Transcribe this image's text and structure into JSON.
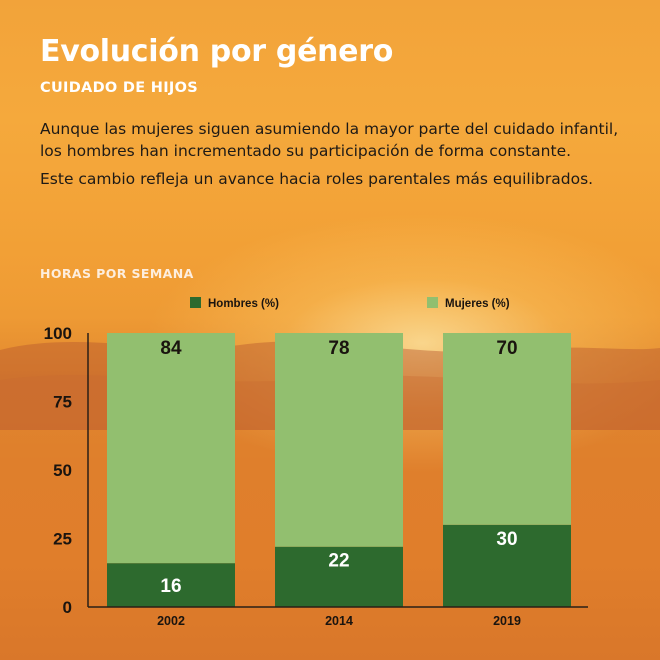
{
  "header": {
    "title": "Evolución por género",
    "subtitle": "CUIDADO DE HIJOS"
  },
  "intro": {
    "paragraph_1": "Aunque las mujeres siguen asumiendo la mayor parte del cuidado infantil, los hombres han incrementado su participación de forma constante.",
    "paragraph_2": "Este cambio refleja un avance hacia roles parentales más equilibrados."
  },
  "chart_label": "HORAS POR SEMANA",
  "colors": {
    "hombres": "#2d6a2e",
    "mujeres": "#92bf6f",
    "axis": "#2a1f16",
    "text_dark": "#1a140f",
    "text_light": "#ffffff"
  },
  "chart_data": {
    "type": "bar",
    "stacked": true,
    "title": "",
    "xlabel": "",
    "ylabel": "",
    "categories": [
      "2002",
      "2014",
      "2019"
    ],
    "series": [
      {
        "name": "Hombres (%)",
        "values": [
          16,
          22,
          30
        ]
      },
      {
        "name": "Mujeres (%)",
        "values": [
          84,
          78,
          70
        ]
      }
    ],
    "ylim": [
      0,
      100
    ],
    "yticks": [
      "0",
      "25",
      "50",
      "75",
      "100"
    ],
    "grid": false,
    "legend": "top"
  }
}
